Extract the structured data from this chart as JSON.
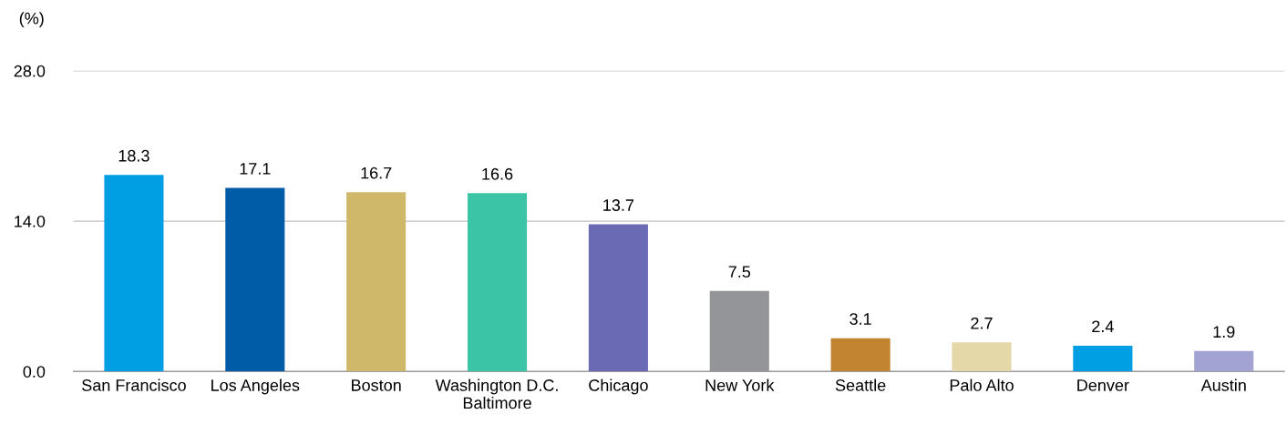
{
  "chart_data": {
    "type": "bar",
    "ylabel": "(%)",
    "categories": [
      "San Francisco",
      "Los Angeles",
      "Boston",
      "Washington D.C.\nBaltimore",
      "Chicago",
      "New York",
      "Seattle",
      "Palo Alto",
      "Denver",
      "Austin"
    ],
    "values": [
      18.3,
      17.1,
      16.7,
      16.6,
      13.7,
      7.5,
      3.1,
      2.7,
      2.4,
      1.9
    ],
    "colors": [
      "#009fe3",
      "#005ca6",
      "#d0b86b",
      "#3cc4a6",
      "#6a69b3",
      "#939598",
      "#c28431",
      "#e5d8a8",
      "#009fe3",
      "#a3a3d3"
    ],
    "ylim": [
      0,
      28
    ],
    "yticks": [
      {
        "value": 0,
        "label": "0.0"
      },
      {
        "value": 14,
        "label": "14.0"
      },
      {
        "value": 28,
        "label": "28.0"
      }
    ],
    "grid": "y",
    "data_labels": true
  }
}
